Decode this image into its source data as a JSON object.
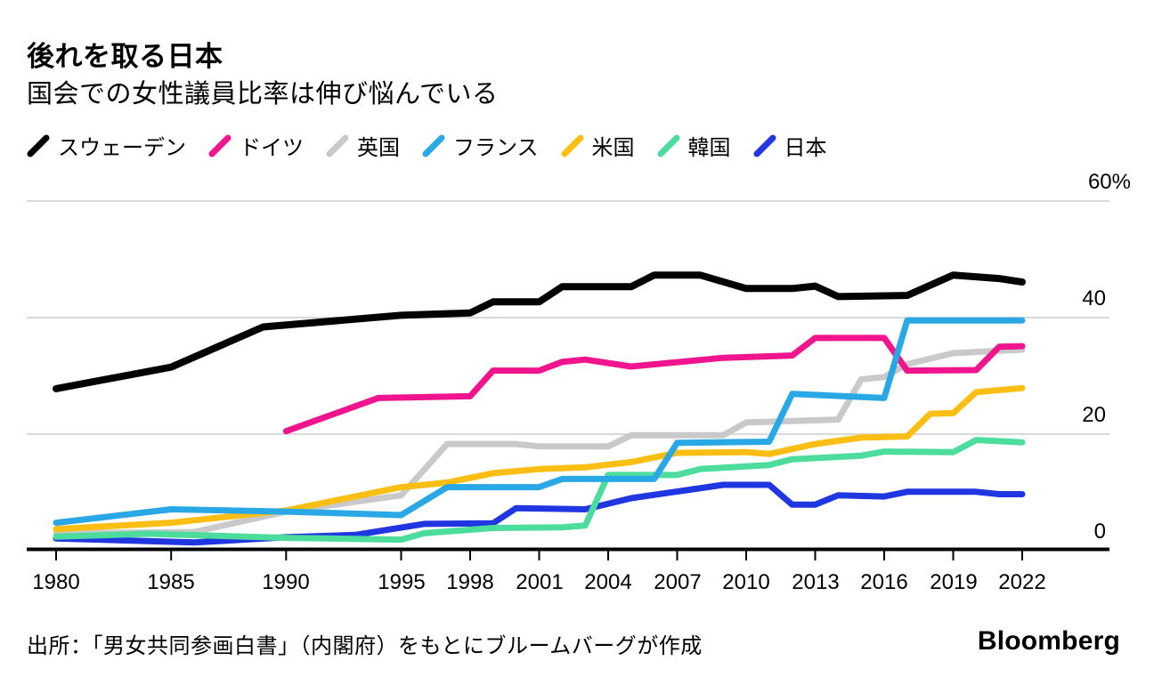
{
  "header": {
    "title": "後れを取る日本",
    "subtitle": "国会での女性議員比率は伸び悩んでいる"
  },
  "legend": {
    "items": [
      {
        "name": "sweden",
        "label": "スウェーデン",
        "color": "#000000"
      },
      {
        "name": "germany",
        "label": "ドイツ",
        "color": "#f0148e"
      },
      {
        "name": "uk",
        "label": "英国",
        "color": "#c9c9c9"
      },
      {
        "name": "france",
        "label": "フランス",
        "color": "#29a8e5"
      },
      {
        "name": "us",
        "label": "米国",
        "color": "#fcbe13"
      },
      {
        "name": "korea",
        "label": "韓国",
        "color": "#4cdc9c"
      },
      {
        "name": "japan",
        "label": "日本",
        "color": "#2036e0"
      }
    ]
  },
  "chart_data": {
    "type": "line",
    "title": "後れを取る日本",
    "subtitle": "国会での女性議員比率は伸び悩んでいる",
    "unit": "percent of seats held by women in parliament",
    "x_axis": {
      "range": [
        1980,
        2022
      ],
      "ticks": [
        1980,
        1985,
        1990,
        1995,
        1998,
        2001,
        2004,
        2007,
        2010,
        2013,
        2016,
        2019,
        2022
      ]
    },
    "y_axis": {
      "range": [
        0,
        60
      ],
      "gridline_values": [
        60,
        40,
        20
      ],
      "labels": [
        {
          "text": "60%",
          "value": 60
        },
        {
          "text": "40",
          "value": 40
        },
        {
          "text": "20",
          "value": 20
        },
        {
          "text": "0",
          "value": 0
        }
      ]
    },
    "grid": true,
    "legend_position": "top",
    "series": [
      {
        "name": "sweden",
        "label": "スウェーデン",
        "color": "#000000",
        "points": [
          [
            1980,
            27.8
          ],
          [
            1985,
            31.5
          ],
          [
            1989,
            38.4
          ],
          [
            1995,
            40.4
          ],
          [
            1998,
            40.8
          ],
          [
            1999,
            42.7
          ],
          [
            2001,
            42.7
          ],
          [
            2002,
            45.3
          ],
          [
            2005,
            45.3
          ],
          [
            2006,
            47.3
          ],
          [
            2008,
            47.3
          ],
          [
            2010,
            45.0
          ],
          [
            2012,
            45.0
          ],
          [
            2013,
            45.4
          ],
          [
            2014,
            43.6
          ],
          [
            2017,
            43.8
          ],
          [
            2019,
            47.3
          ],
          [
            2021,
            46.7
          ],
          [
            2022,
            46.1
          ]
        ]
      },
      {
        "name": "germany",
        "label": "ドイツ",
        "color": "#f0148e",
        "points": [
          [
            1990,
            20.5
          ],
          [
            1994,
            26.2
          ],
          [
            1998,
            26.5
          ],
          [
            1999,
            30.9
          ],
          [
            2001,
            30.9
          ],
          [
            2002,
            32.4
          ],
          [
            2003,
            32.8
          ],
          [
            2005,
            31.6
          ],
          [
            2009,
            33.1
          ],
          [
            2012,
            33.5
          ],
          [
            2013,
            36.5
          ],
          [
            2016,
            36.5
          ],
          [
            2017,
            30.9
          ],
          [
            2020,
            31.0
          ],
          [
            2021,
            35.0
          ],
          [
            2022,
            35.1
          ]
        ]
      },
      {
        "name": "uk",
        "label": "英国",
        "color": "#c9c9c9",
        "points": [
          [
            1980,
            3.0
          ],
          [
            1986,
            3.2
          ],
          [
            1990,
            6.7
          ],
          [
            1995,
            9.5
          ],
          [
            1997,
            18.3
          ],
          [
            2000,
            18.3
          ],
          [
            2001,
            17.9
          ],
          [
            2004,
            17.9
          ],
          [
            2005,
            19.8
          ],
          [
            2009,
            19.8
          ],
          [
            2010,
            22.0
          ],
          [
            2014,
            22.5
          ],
          [
            2015,
            29.4
          ],
          [
            2016,
            29.8
          ],
          [
            2017,
            32.0
          ],
          [
            2019,
            33.9
          ],
          [
            2021,
            34.3
          ],
          [
            2022,
            34.5
          ]
        ]
      },
      {
        "name": "france",
        "label": "フランス",
        "color": "#29a8e5",
        "points": [
          [
            1980,
            4.8
          ],
          [
            1985,
            7.1
          ],
          [
            1990,
            6.7
          ],
          [
            1995,
            6.1
          ],
          [
            1997,
            10.9
          ],
          [
            2001,
            10.9
          ],
          [
            2002,
            12.3
          ],
          [
            2006,
            12.3
          ],
          [
            2007,
            18.5
          ],
          [
            2011,
            18.7
          ],
          [
            2012,
            26.9
          ],
          [
            2016,
            26.2
          ],
          [
            2017,
            39.5
          ],
          [
            2022,
            39.5
          ]
        ]
      },
      {
        "name": "us",
        "label": "米国",
        "color": "#fcbe13",
        "points": [
          [
            1980,
            3.7
          ],
          [
            1985,
            4.8
          ],
          [
            1990,
            6.9
          ],
          [
            1995,
            10.9
          ],
          [
            1997,
            11.7
          ],
          [
            1999,
            13.3
          ],
          [
            2001,
            14.0
          ],
          [
            2003,
            14.3
          ],
          [
            2005,
            15.2
          ],
          [
            2007,
            16.8
          ],
          [
            2010,
            16.9
          ],
          [
            2011,
            16.6
          ],
          [
            2013,
            18.3
          ],
          [
            2015,
            19.4
          ],
          [
            2017,
            19.6
          ],
          [
            2018,
            23.5
          ],
          [
            2019,
            23.6
          ],
          [
            2020,
            27.2
          ],
          [
            2022,
            27.9
          ]
        ]
      },
      {
        "name": "korea",
        "label": "韓国",
        "color": "#4cdc9c",
        "points": [
          [
            1980,
            2.4
          ],
          [
            1984,
            2.9
          ],
          [
            1990,
            2.2
          ],
          [
            1995,
            1.9
          ],
          [
            1996,
            3.0
          ],
          [
            1999,
            3.9
          ],
          [
            2002,
            4.0
          ],
          [
            2003,
            4.3
          ],
          [
            2004,
            13.0
          ],
          [
            2007,
            13.0
          ],
          [
            2008,
            14.0
          ],
          [
            2011,
            14.7
          ],
          [
            2012,
            15.7
          ],
          [
            2015,
            16.3
          ],
          [
            2016,
            17.0
          ],
          [
            2019,
            16.9
          ],
          [
            2020,
            19.0
          ],
          [
            2022,
            18.6
          ]
        ]
      },
      {
        "name": "japan",
        "label": "日本",
        "color": "#2036e0",
        "points": [
          [
            1980,
            2.1
          ],
          [
            1986,
            1.4
          ],
          [
            1990,
            2.3
          ],
          [
            1993,
            2.7
          ],
          [
            1996,
            4.6
          ],
          [
            1999,
            4.7
          ],
          [
            2000,
            7.3
          ],
          [
            2003,
            7.1
          ],
          [
            2005,
            9.0
          ],
          [
            2009,
            11.3
          ],
          [
            2011,
            11.3
          ],
          [
            2012,
            7.9
          ],
          [
            2013,
            7.9
          ],
          [
            2014,
            9.5
          ],
          [
            2016,
            9.3
          ],
          [
            2017,
            10.1
          ],
          [
            2020,
            10.1
          ],
          [
            2021,
            9.7
          ],
          [
            2022,
            9.7
          ]
        ]
      }
    ],
    "draw_order": [
      "uk",
      "us",
      "japan",
      "korea",
      "germany",
      "france",
      "sweden"
    ]
  },
  "footer": {
    "source": "出所：「男女共同参画白書」（内閣府）をもとにブルームバーグが作成",
    "logo": "Bloomberg"
  }
}
